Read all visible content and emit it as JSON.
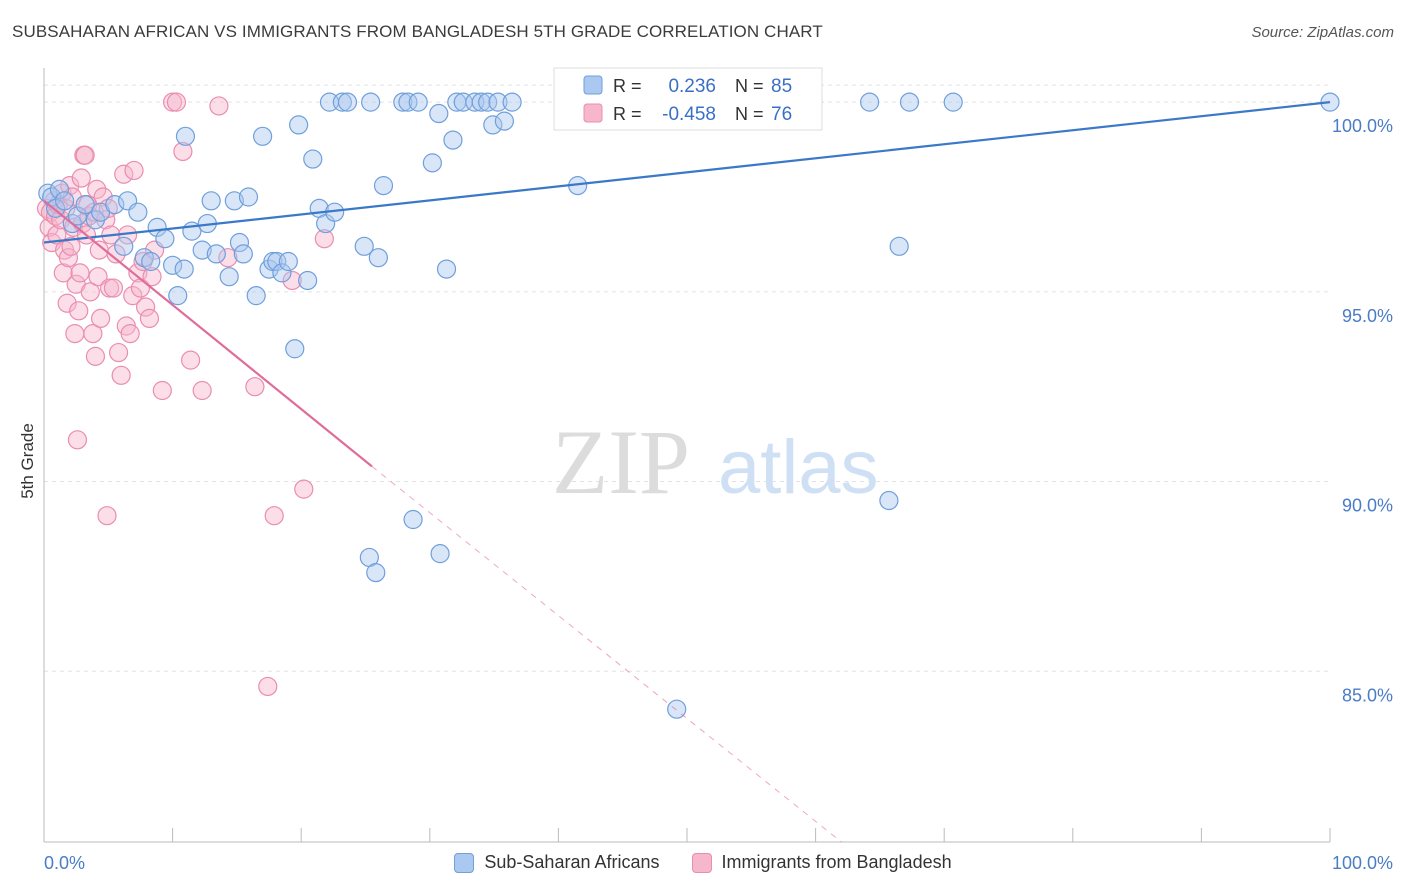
{
  "header": {
    "title": "SUBSAHARAN AFRICAN VS IMMIGRANTS FROM BANGLADESH 5TH GRADE CORRELATION CHART",
    "source": "Source: ZipAtlas.com"
  },
  "watermark": {
    "zip": "ZIP",
    "atlas": "atlas"
  },
  "colors": {
    "blue_fill": "#aac8f0",
    "blue_stroke": "#6f9fdc",
    "blue_line": "#3a78c8",
    "pink_fill": "#f6b6cb",
    "pink_stroke": "#ea8db0",
    "pink_line": "#e06c9a",
    "axis_label": "#4a7cc7",
    "grid": "#e2e2e2"
  },
  "stats_legend": [
    {
      "r_label": "R =",
      "r_value": "0.236",
      "n_label": "N =",
      "n_value": "85"
    },
    {
      "r_label": "R =",
      "r_value": "-0.458",
      "n_label": "N =",
      "n_value": "76"
    }
  ],
  "chart_data": {
    "type": "scatter",
    "title": "SUBSAHARAN AFRICAN VS IMMIGRANTS FROM BANGLADESH 5TH GRADE CORRELATION CHART",
    "xlabel": "",
    "ylabel": "5th Grade",
    "xlim": [
      0,
      100
    ],
    "ylim": [
      80.5,
      100.9
    ],
    "x_tick_labels": [
      "0.0%",
      "100.0%"
    ],
    "y_ticks": [
      85,
      90,
      95,
      100
    ],
    "y_tick_labels": [
      "85.0%",
      "90.0%",
      "95.0%",
      "100.0%"
    ],
    "grid": true,
    "legend_position": "bottom-center",
    "series": [
      {
        "name": "Sub-Saharan Africans",
        "color": "#aac8f0",
        "trend": {
          "x": [
            0,
            100
          ],
          "y": [
            96.3,
            100.0
          ],
          "style": "solid"
        },
        "points": [
          [
            0.3,
            97.6
          ],
          [
            0.6,
            97.5
          ],
          [
            0.9,
            97.2
          ],
          [
            1.2,
            97.7
          ],
          [
            1.6,
            97.4
          ],
          [
            2.2,
            96.8
          ],
          [
            2.6,
            97.0
          ],
          [
            3.2,
            97.3
          ],
          [
            4.0,
            96.9
          ],
          [
            4.4,
            97.1
          ],
          [
            5.5,
            97.3
          ],
          [
            6.2,
            96.2
          ],
          [
            6.5,
            97.4
          ],
          [
            7.3,
            97.1
          ],
          [
            7.8,
            95.9
          ],
          [
            8.3,
            95.8
          ],
          [
            8.8,
            96.7
          ],
          [
            9.4,
            96.4
          ],
          [
            10.0,
            95.7
          ],
          [
            10.4,
            94.9
          ],
          [
            10.9,
            95.6
          ],
          [
            11.5,
            96.6
          ],
          [
            12.3,
            96.1
          ],
          [
            12.7,
            96.8
          ],
          [
            13.0,
            97.4
          ],
          [
            13.4,
            96.0
          ],
          [
            14.4,
            95.4
          ],
          [
            14.8,
            97.4
          ],
          [
            15.2,
            96.3
          ],
          [
            15.5,
            96.0
          ],
          [
            15.9,
            97.5
          ],
          [
            16.5,
            94.9
          ],
          [
            17.0,
            99.1
          ],
          [
            17.5,
            95.6
          ],
          [
            17.8,
            95.8
          ],
          [
            18.1,
            95.8
          ],
          [
            18.5,
            95.5
          ],
          [
            19.0,
            95.8
          ],
          [
            19.5,
            93.5
          ],
          [
            19.8,
            99.4
          ],
          [
            20.5,
            95.3
          ],
          [
            20.9,
            98.5
          ],
          [
            21.4,
            97.2
          ],
          [
            21.9,
            96.8
          ],
          [
            22.6,
            97.1
          ],
          [
            22.2,
            100.0
          ],
          [
            23.2,
            100.0
          ],
          [
            23.6,
            100.0
          ],
          [
            24.9,
            96.2
          ],
          [
            25.4,
            100.0
          ],
          [
            26.0,
            95.9
          ],
          [
            26.4,
            97.8
          ],
          [
            27.9,
            100.0
          ],
          [
            28.3,
            100.0
          ],
          [
            28.7,
            89.0
          ],
          [
            29.1,
            100.0
          ],
          [
            30.2,
            98.4
          ],
          [
            30.7,
            99.7
          ],
          [
            31.8,
            99.0
          ],
          [
            31.3,
            95.6
          ],
          [
            32.1,
            100.0
          ],
          [
            32.6,
            100.0
          ],
          [
            33.5,
            100.0
          ],
          [
            34.0,
            100.0
          ],
          [
            34.5,
            100.0
          ],
          [
            34.9,
            99.4
          ],
          [
            35.3,
            100.0
          ],
          [
            35.8,
            99.5
          ],
          [
            36.4,
            100.0
          ],
          [
            30.8,
            88.1
          ],
          [
            25.3,
            88.0
          ],
          [
            25.8,
            87.6
          ],
          [
            43.9,
            100.0
          ],
          [
            46.9,
            100.0
          ],
          [
            51.6,
            100.0
          ],
          [
            59.8,
            100.0
          ],
          [
            64.2,
            100.0
          ],
          [
            65.7,
            89.5
          ],
          [
            66.5,
            96.2
          ],
          [
            67.3,
            100.0
          ],
          [
            70.7,
            100.0
          ],
          [
            41.5,
            97.8
          ],
          [
            49.2,
            84.0
          ],
          [
            100.0,
            100.0
          ],
          [
            11.0,
            99.1
          ]
        ]
      },
      {
        "name": "Immigrants from Bangladesh",
        "color": "#f6b6cb",
        "trend": {
          "x": [
            0,
            25.5
          ],
          "y": [
            97.4,
            90.4
          ],
          "style": "solid",
          "extrapolated": {
            "x": [
              25.5,
              62.0
            ],
            "y": [
              90.4,
              80.5
            ],
            "style": "dashed"
          }
        },
        "points": [
          [
            0.2,
            97.2
          ],
          [
            0.4,
            96.7
          ],
          [
            0.5,
            97.1
          ],
          [
            0.6,
            96.3
          ],
          [
            0.8,
            97.4
          ],
          [
            0.9,
            97.0
          ],
          [
            1.0,
            96.5
          ],
          [
            1.1,
            97.3
          ],
          [
            1.3,
            96.9
          ],
          [
            1.4,
            97.6
          ],
          [
            1.5,
            95.5
          ],
          [
            1.6,
            96.1
          ],
          [
            1.7,
            97.2
          ],
          [
            1.8,
            94.7
          ],
          [
            1.9,
            95.9
          ],
          [
            2.0,
            97.8
          ],
          [
            2.1,
            96.2
          ],
          [
            2.2,
            97.5
          ],
          [
            2.3,
            96.7
          ],
          [
            2.4,
            93.9
          ],
          [
            2.5,
            95.2
          ],
          [
            2.6,
            91.1
          ],
          [
            2.7,
            94.5
          ],
          [
            2.8,
            95.5
          ],
          [
            2.9,
            98.0
          ],
          [
            3.0,
            96.8
          ],
          [
            3.1,
            98.6
          ],
          [
            3.2,
            98.6
          ],
          [
            3.3,
            96.5
          ],
          [
            3.4,
            97.3
          ],
          [
            3.5,
            97.0
          ],
          [
            3.6,
            95.0
          ],
          [
            3.8,
            93.9
          ],
          [
            3.9,
            97.1
          ],
          [
            4.0,
            93.3
          ],
          [
            4.1,
            97.7
          ],
          [
            4.2,
            95.4
          ],
          [
            4.3,
            96.1
          ],
          [
            4.4,
            94.3
          ],
          [
            4.6,
            97.5
          ],
          [
            4.8,
            96.9
          ],
          [
            4.9,
            89.1
          ],
          [
            5.0,
            97.2
          ],
          [
            5.1,
            95.1
          ],
          [
            5.2,
            96.5
          ],
          [
            5.4,
            95.1
          ],
          [
            5.6,
            96.0
          ],
          [
            5.8,
            93.4
          ],
          [
            6.0,
            92.8
          ],
          [
            6.2,
            98.1
          ],
          [
            6.4,
            94.1
          ],
          [
            6.5,
            96.5
          ],
          [
            6.7,
            93.9
          ],
          [
            6.9,
            94.9
          ],
          [
            7.3,
            95.5
          ],
          [
            7.5,
            95.1
          ],
          [
            7.7,
            95.8
          ],
          [
            7.9,
            94.6
          ],
          [
            8.2,
            94.3
          ],
          [
            8.4,
            95.4
          ],
          [
            8.6,
            96.1
          ],
          [
            9.2,
            92.4
          ],
          [
            10.0,
            100.0
          ],
          [
            10.3,
            100.0
          ],
          [
            10.8,
            98.7
          ],
          [
            11.4,
            93.2
          ],
          [
            12.3,
            92.4
          ],
          [
            13.6,
            99.9
          ],
          [
            14.3,
            95.9
          ],
          [
            16.4,
            92.5
          ],
          [
            17.4,
            84.6
          ],
          [
            17.9,
            89.1
          ],
          [
            19.3,
            95.3
          ],
          [
            20.2,
            89.8
          ],
          [
            21.8,
            96.4
          ],
          [
            7.0,
            98.2
          ]
        ]
      }
    ]
  },
  "bottom_legend": [
    {
      "label": "Sub-Saharan Africans"
    },
    {
      "label": "Immigrants from Bangladesh"
    }
  ]
}
